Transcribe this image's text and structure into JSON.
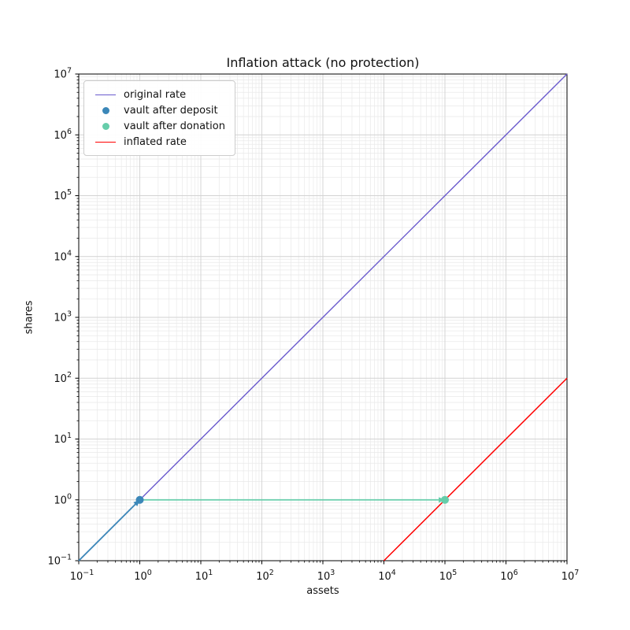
{
  "figure": {
    "title": "Inflation attack (no protection)",
    "xlabel": "assets",
    "ylabel": "shares"
  },
  "chart_data": {
    "type": "line",
    "title": "Inflation attack (no protection)",
    "xlabel": "assets",
    "ylabel": "shares",
    "xscale": "log",
    "yscale": "log",
    "xlim": [
      0.1,
      10000000
    ],
    "ylim": [
      0.1,
      10000000
    ],
    "x_tick_exponents": [
      -1,
      0,
      1,
      2,
      3,
      4,
      5,
      6,
      7
    ],
    "y_tick_exponents": [
      -1,
      0,
      1,
      2,
      3,
      4,
      5,
      6,
      7
    ],
    "grid": "both",
    "legend_position": "upper left",
    "series": [
      {
        "name": "original rate",
        "kind": "line",
        "color": "#6a5acd",
        "linewidth": 1.4,
        "points": [
          [
            0.1,
            0.1
          ],
          [
            10000000,
            10000000
          ]
        ]
      },
      {
        "name": "vault after deposit",
        "kind": "scatter",
        "color": "#3b87b8",
        "markersize": 10,
        "points": [
          [
            1,
            1
          ]
        ]
      },
      {
        "name": "vault after donation",
        "kind": "scatter",
        "color": "#66cdaa",
        "markersize": 10,
        "points": [
          [
            100000,
            1
          ]
        ]
      },
      {
        "name": "inflated rate",
        "kind": "line",
        "color": "#ff0000",
        "linewidth": 1.5,
        "points": [
          [
            10000,
            0.1
          ],
          [
            10000000,
            100
          ]
        ]
      }
    ],
    "annotations": [
      {
        "kind": "arrow",
        "name": "deposit-arrow",
        "color": "#3b87b8",
        "linewidth": 1.8,
        "from": [
          0.1,
          0.1
        ],
        "to": [
          1,
          1
        ]
      },
      {
        "kind": "arrow",
        "name": "donation-arrow",
        "color": "#66cdaa",
        "linewidth": 1.8,
        "from": [
          1,
          1
        ],
        "to": [
          100000,
          1
        ]
      }
    ],
    "legend_entries": [
      {
        "label": "original rate",
        "marker": "line",
        "color": "#6a5acd"
      },
      {
        "label": "vault after deposit",
        "marker": "dot",
        "color": "#3b87b8"
      },
      {
        "label": "vault after donation",
        "marker": "dot",
        "color": "#66cdaa"
      },
      {
        "label": "inflated rate",
        "marker": "line",
        "color": "#ff0000"
      }
    ],
    "styles": {
      "grid_major_color": "#d2d2d2",
      "grid_minor_color": "#e9e9e9",
      "spine_color": "#000000",
      "background": "#ffffff",
      "tick_label_color": "#111111"
    }
  }
}
